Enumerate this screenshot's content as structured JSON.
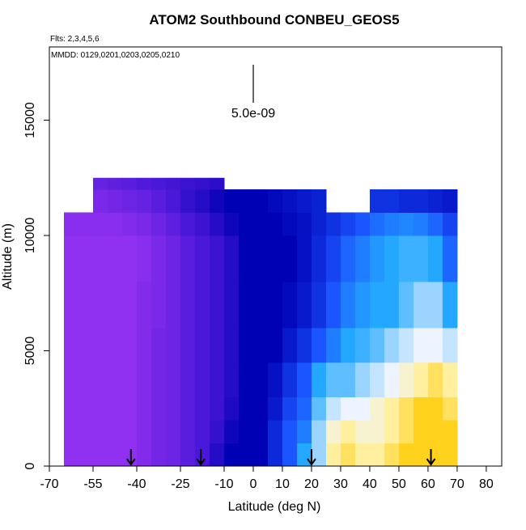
{
  "chart_data": {
    "type": "heatmap",
    "title": "ATOM2 Southbound CONBEU_GEOS5",
    "subtitle": "Flts: 2,3,4,5,6",
    "annotation": "MMDD: 0129,0201,0203,0205,0210",
    "scale_label": "5.0e-09",
    "x_label": "Latitude (deg N)",
    "y_label": "Altitude (m)",
    "xlim": [
      -70,
      85.3
    ],
    "ylim": [
      0,
      18175
    ],
    "xticks": [
      -70,
      -55,
      -40,
      -25,
      -10,
      0,
      10,
      20,
      30,
      40,
      50,
      60,
      70,
      80
    ],
    "yticks": [
      0,
      5000,
      10000,
      15000
    ],
    "x_edges": [
      -65,
      -60,
      -55,
      -50,
      -45,
      -40,
      -35,
      -30,
      -25,
      -20,
      -15,
      -10,
      -5,
      0,
      5,
      10,
      15,
      20,
      25,
      30,
      35,
      40,
      45,
      50,
      55,
      60,
      65,
      70
    ],
    "y_edges": [
      0,
      1000,
      2000,
      3000,
      4500,
      6000,
      8000,
      10000,
      11000,
      12000,
      12500
    ],
    "color_stops": [
      {
        "value": 1e-09,
        "color": "#9030f0"
      },
      {
        "value": 2e-09,
        "color": "#4a18d8"
      },
      {
        "value": 3e-09,
        "color": "#0000b4"
      },
      {
        "value": 4e-09,
        "color": "#1a55ff"
      },
      {
        "value": 5e-09,
        "color": "#24a8ff"
      },
      {
        "value": 6e-09,
        "color": "#9ad4ff"
      },
      {
        "value": 7e-09,
        "color": "#eef4ff"
      },
      {
        "value": 8e-09,
        "color": "#fff0a0"
      },
      {
        "value": 9e-09,
        "color": "#ffd21e"
      }
    ],
    "values": [
      [
        1e-09,
        1e-09,
        1e-09,
        1e-09,
        1e-09,
        1.2e-09,
        1.4e-09,
        1.5e-09,
        1.8e-09,
        2e-09,
        2.5e-09,
        3e-09,
        3e-09,
        3e-09,
        3.5e-09,
        4e-09,
        5e-09,
        6e-09,
        8e-09,
        8.5e-09,
        8e-09,
        8e-09,
        8.5e-09,
        9e-09,
        9e-09,
        9e-09,
        9e-09
      ],
      [
        1e-09,
        1e-09,
        1e-09,
        1e-09,
        1e-09,
        1.2e-09,
        1.4e-09,
        1.5e-09,
        1.8e-09,
        2e-09,
        2.3e-09,
        2.8e-09,
        3e-09,
        3e-09,
        3.5e-09,
        4e-09,
        4.5e-09,
        6e-09,
        7.5e-09,
        8e-09,
        7.5e-09,
        7.5e-09,
        8e-09,
        8.5e-09,
        9e-09,
        9e-09,
        9e-09
      ],
      [
        1e-09,
        1e-09,
        1e-09,
        1e-09,
        1e-09,
        1.2e-09,
        1.4e-09,
        1.5e-09,
        1.8e-09,
        2e-09,
        2.2e-09,
        2.6e-09,
        3e-09,
        3e-09,
        3.3e-09,
        3.8e-09,
        4.2e-09,
        5.5e-09,
        6.5e-09,
        7e-09,
        7e-09,
        7.5e-09,
        8e-09,
        8.5e-09,
        9e-09,
        9e-09,
        8.5e-09
      ],
      [
        1e-09,
        1e-09,
        1e-09,
        1e-09,
        1e-09,
        1.2e-09,
        1.4e-09,
        1.5e-09,
        1.8e-09,
        2e-09,
        2.2e-09,
        2.5e-09,
        3e-09,
        3e-09,
        3.2e-09,
        3.6e-09,
        4e-09,
        5e-09,
        5.5e-09,
        5.5e-09,
        6e-09,
        6.5e-09,
        7e-09,
        7.5e-09,
        8e-09,
        8.5e-09,
        8e-09
      ],
      [
        1e-09,
        1e-09,
        1e-09,
        1e-09,
        1e-09,
        1.2e-09,
        1.4e-09,
        1.5e-09,
        1.8e-09,
        2e-09,
        2.2e-09,
        2.5e-09,
        3e-09,
        3e-09,
        3e-09,
        3.3e-09,
        3.6e-09,
        4e-09,
        4.5e-09,
        5e-09,
        5.2e-09,
        5.5e-09,
        6e-09,
        6.5e-09,
        7e-09,
        7e-09,
        6.5e-09
      ],
      [
        1e-09,
        1e-09,
        1e-09,
        1e-09,
        1e-09,
        1.2e-09,
        1.3e-09,
        1.5e-09,
        1.8e-09,
        2e-09,
        2.2e-09,
        2.5e-09,
        3e-09,
        3e-09,
        3e-09,
        3.1e-09,
        3.3e-09,
        3.6e-09,
        4e-09,
        4.5e-09,
        4.8e-09,
        5e-09,
        5e-09,
        5.5e-09,
        6e-09,
        6e-09,
        5e-09
      ],
      [
        1e-09,
        1e-09,
        1e-09,
        1e-09,
        1e-09,
        1.1e-09,
        1.3e-09,
        1.5e-09,
        1.8e-09,
        2e-09,
        2.2e-09,
        2.5e-09,
        3e-09,
        3e-09,
        3e-09,
        3e-09,
        3.2e-09,
        3.5e-09,
        3.8e-09,
        4.2e-09,
        4.5e-09,
        4.8e-09,
        5e-09,
        5.2e-09,
        5.2e-09,
        5e-09,
        4.2e-09
      ],
      [
        1.1e-09,
        1.1e-09,
        1.1e-09,
        1.1e-09,
        1.2e-09,
        1.3e-09,
        1.5e-09,
        1.7e-09,
        2e-09,
        2.2e-09,
        2.5e-09,
        2.8e-09,
        3e-09,
        3e-09,
        3e-09,
        3.1e-09,
        3.2e-09,
        3.4e-09,
        3.6e-09,
        3.8e-09,
        4e-09,
        4.3e-09,
        4.5e-09,
        4.6e-09,
        4.5e-09,
        4.2e-09,
        3.8e-09
      ],
      [
        null,
        null,
        1.3e-09,
        1.4e-09,
        1.5e-09,
        1.6e-09,
        1.8e-09,
        2e-09,
        2.3e-09,
        2.5e-09,
        2.8e-09,
        3e-09,
        3e-09,
        3e-09,
        3.1e-09,
        3.2e-09,
        3.3e-09,
        3.4e-09,
        null,
        null,
        null,
        3.6e-09,
        3.6e-09,
        3.5e-09,
        3.5e-09,
        3.4e-09,
        3.3e-09
      ],
      [
        null,
        null,
        1.6e-09,
        1.7e-09,
        1.8e-09,
        1.9e-09,
        2e-09,
        2.1e-09,
        2.2e-09,
        2.3e-09,
        2.4e-09,
        null,
        null,
        null,
        null,
        null,
        null,
        null,
        null,
        null,
        null,
        null,
        null,
        null,
        null,
        null,
        null
      ]
    ],
    "arrows_lat": [
      -42,
      -18,
      20,
      61
    ]
  }
}
